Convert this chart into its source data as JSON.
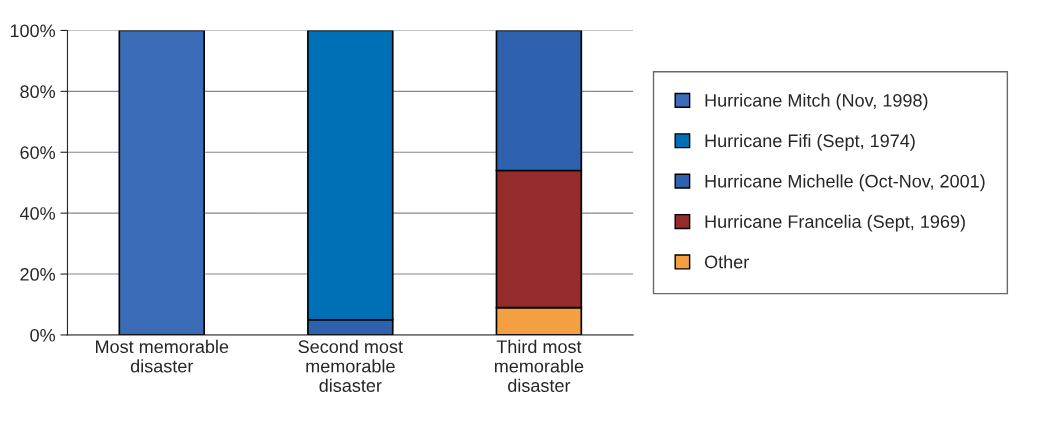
{
  "chart_data": {
    "type": "bar",
    "stacked": true,
    "categories": [
      "Most memorable\ndisaster",
      "Second most\nmemorable\ndisaster",
      "Third most\nmemorable\ndisaster"
    ],
    "series": [
      {
        "name": "Other",
        "color": "#f2a041",
        "values": [
          0,
          0,
          9
        ]
      },
      {
        "name": "Hurricane Francelia (Sept, 1969)",
        "color": "#952b2b",
        "values": [
          0,
          0,
          45
        ]
      },
      {
        "name": "Hurricane Michelle (Oct-Nov, 2001)",
        "color": "#2f62ae",
        "values": [
          0,
          5,
          46
        ]
      },
      {
        "name": "Hurricane Fifi (Sept, 1974)",
        "color": "#0070b6",
        "values": [
          0,
          95,
          0
        ]
      },
      {
        "name": "Hurricane Mitch (Nov, 1998)",
        "color": "#3a6cb8",
        "values": [
          100,
          0,
          0
        ]
      }
    ],
    "ylim": [
      0,
      100
    ],
    "yticks": [
      {
        "value": 0,
        "label": "0%"
      },
      {
        "value": 20,
        "label": "20%"
      },
      {
        "value": 40,
        "label": "40%"
      },
      {
        "value": 60,
        "label": "60%"
      },
      {
        "value": 80,
        "label": "80%"
      },
      {
        "value": 100,
        "label": "100%"
      }
    ],
    "grid": "y",
    "legend": "right"
  }
}
